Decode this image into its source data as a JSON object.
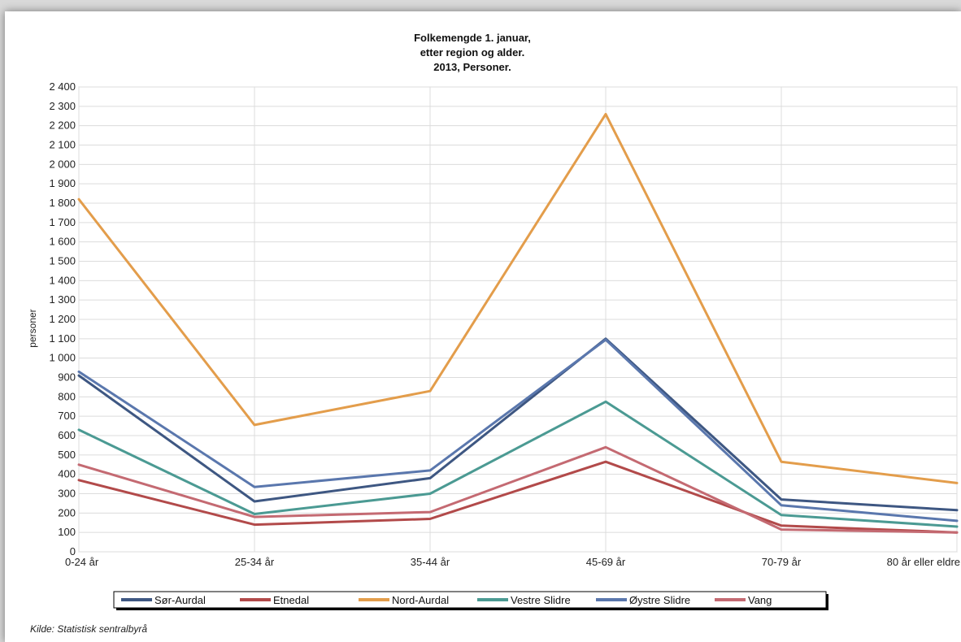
{
  "chart_data": {
    "type": "line",
    "title": [
      "Folkemengde 1. januar,",
      "etter region og alder.",
      "2013, Personer."
    ],
    "ylabel": "personer",
    "xlabel": "",
    "ylim": [
      0,
      2400
    ],
    "ytick_step": 100,
    "ytick_labels": [
      "0",
      "100",
      "200",
      "300",
      "400",
      "500",
      "600",
      "700",
      "800",
      "900",
      "1 000",
      "1 100",
      "1 200",
      "1 300",
      "1 400",
      "1 500",
      "1 600",
      "1 700",
      "1 800",
      "1 900",
      "2 000",
      "2 100",
      "2 200",
      "2 300",
      "2 400"
    ],
    "categories": [
      "0-24 år",
      "25-34 år",
      "35-44 år",
      "45-69 år",
      "70-79 år",
      "80 år eller eldre"
    ],
    "grid": true,
    "legend_position": "bottom",
    "series": [
      {
        "name": "Sør-Aurdal",
        "color": "#3e5782",
        "values": [
          910,
          260,
          380,
          1100,
          270,
          215
        ]
      },
      {
        "name": "Etnedal",
        "color": "#b24a4a",
        "values": [
          370,
          140,
          170,
          465,
          135,
          100
        ]
      },
      {
        "name": "Nord-Aurdal",
        "color": "#e39d4b",
        "values": [
          1820,
          655,
          830,
          2260,
          465,
          355
        ]
      },
      {
        "name": "Vestre Slidre",
        "color": "#4b9a93",
        "values": [
          630,
          195,
          300,
          775,
          190,
          130
        ]
      },
      {
        "name": "Øystre Slidre",
        "color": "#5a77ad",
        "values": [
          930,
          335,
          420,
          1095,
          240,
          160
        ]
      },
      {
        "name": "Vang",
        "color": "#c46a72",
        "values": [
          450,
          180,
          205,
          540,
          115,
          100
        ]
      }
    ],
    "source": "Kilde: Statistisk sentralbyrå"
  }
}
